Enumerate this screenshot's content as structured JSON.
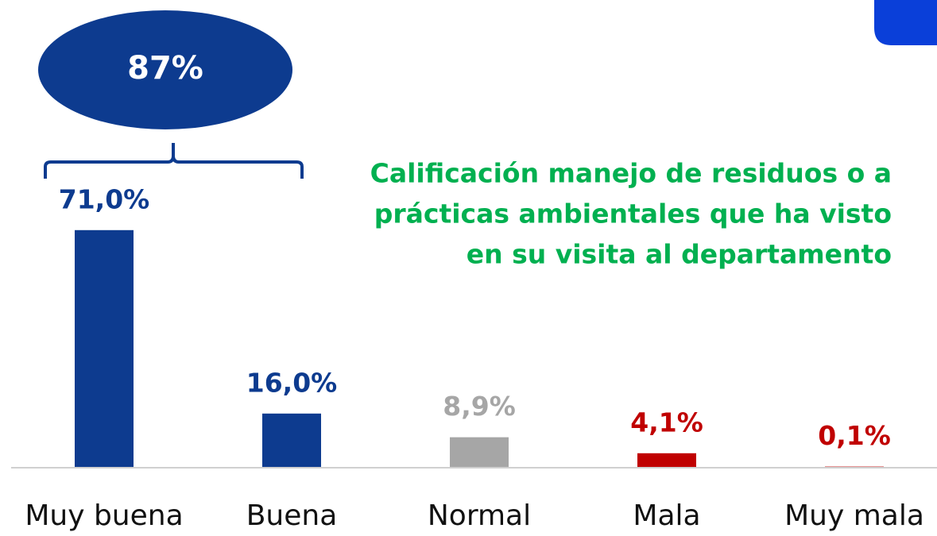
{
  "chart_data": {
    "type": "bar",
    "title": [
      "Calificación manejo de residuos o a",
      "prácticas ambientales que ha visto",
      "en su visita al departamento"
    ],
    "categories": [
      "Muy buena",
      "Buena",
      "Normal",
      "Mala",
      "Muy mala"
    ],
    "values": [
      71.0,
      16.0,
      8.9,
      4.1,
      0.1
    ],
    "value_labels": [
      "71,0%",
      "16,0%",
      "8,9%",
      "4,1%",
      "0,1%"
    ],
    "colors": [
      "#0d3b8f",
      "#0d3b8f",
      "#a6a6a6",
      "#c00000",
      "#c00000"
    ],
    "annotation": "87%"
  }
}
